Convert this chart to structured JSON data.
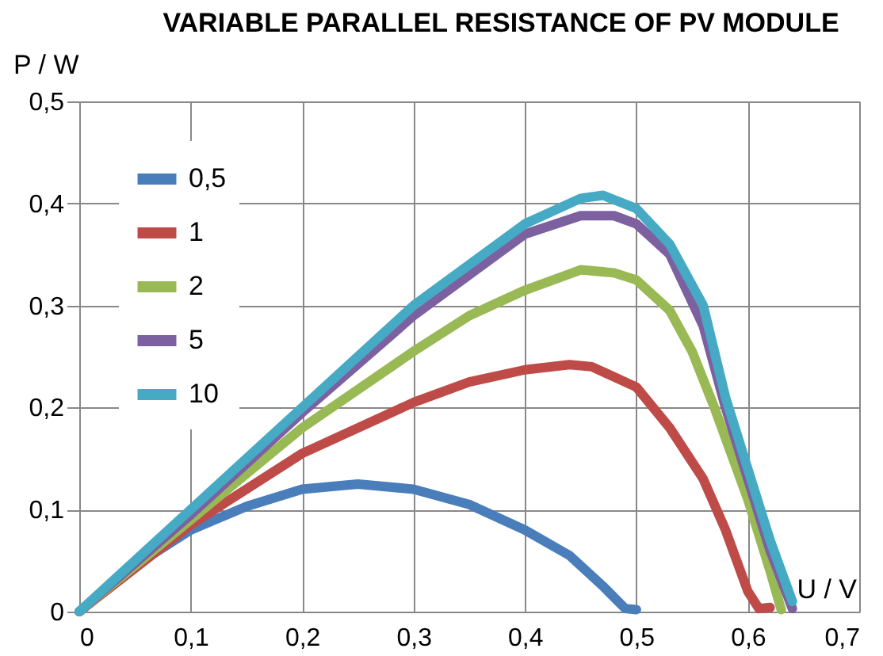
{
  "chart_data": {
    "type": "line",
    "title": "VARIABLE PARALLEL RESISTANCE OF PV MODULE",
    "xlabel": "U / V",
    "ylabel": "P / W",
    "xlim": [
      0,
      0.7
    ],
    "ylim": [
      0,
      0.5
    ],
    "xticks": [
      {
        "value": 0,
        "label": "0"
      },
      {
        "value": 0.1,
        "label": "0,1"
      },
      {
        "value": 0.2,
        "label": "0,2"
      },
      {
        "value": 0.3,
        "label": "0,3"
      },
      {
        "value": 0.4,
        "label": "0,4"
      },
      {
        "value": 0.5,
        "label": "0,5"
      },
      {
        "value": 0.6,
        "label": "0,6"
      },
      {
        "value": 0.7,
        "label": "0,7"
      }
    ],
    "yticks": [
      {
        "value": 0,
        "label": "0"
      },
      {
        "value": 0.1,
        "label": "0,1"
      },
      {
        "value": 0.2,
        "label": "0,2"
      },
      {
        "value": 0.3,
        "label": "0,3"
      },
      {
        "value": 0.4,
        "label": "0,4"
      },
      {
        "value": 0.5,
        "label": "0,5"
      }
    ],
    "grid": true,
    "legend": "top left",
    "marker": "none",
    "line_style": "solid",
    "series": [
      {
        "name": "0,5",
        "color": "#4a7ebb",
        "x": [
          0,
          0.05,
          0.1,
          0.15,
          0.2,
          0.25,
          0.3,
          0.35,
          0.4,
          0.44,
          0.47,
          0.49,
          0.5
        ],
        "values": [
          0,
          0.045,
          0.08,
          0.103,
          0.12,
          0.125,
          0.12,
          0.105,
          0.08,
          0.055,
          0.025,
          0.003,
          0.002
        ]
      },
      {
        "name": "1",
        "color": "#be4b48",
        "x": [
          0,
          0.1,
          0.2,
          0.3,
          0.35,
          0.4,
          0.44,
          0.46,
          0.5,
          0.53,
          0.56,
          0.58,
          0.6,
          0.61,
          0.62
        ],
        "values": [
          0,
          0.085,
          0.155,
          0.205,
          0.225,
          0.237,
          0.242,
          0.24,
          0.22,
          0.18,
          0.13,
          0.08,
          0.02,
          0.003,
          0.004
        ]
      },
      {
        "name": "2",
        "color": "#98b954",
        "x": [
          0,
          0.1,
          0.2,
          0.3,
          0.35,
          0.4,
          0.45,
          0.48,
          0.5,
          0.53,
          0.55,
          0.57,
          0.6,
          0.62,
          0.63
        ],
        "values": [
          0,
          0.09,
          0.18,
          0.255,
          0.29,
          0.315,
          0.335,
          0.332,
          0.325,
          0.295,
          0.255,
          0.2,
          0.11,
          0.04,
          0.002
        ]
      },
      {
        "name": "5",
        "color": "#7d60a0",
        "x": [
          0,
          0.1,
          0.2,
          0.3,
          0.35,
          0.4,
          0.45,
          0.48,
          0.5,
          0.53,
          0.56,
          0.58,
          0.6,
          0.62,
          0.64
        ],
        "values": [
          0,
          0.095,
          0.195,
          0.29,
          0.33,
          0.37,
          0.388,
          0.388,
          0.38,
          0.35,
          0.28,
          0.2,
          0.13,
          0.06,
          0.003
        ]
      },
      {
        "name": "10",
        "color": "#46aac5",
        "x": [
          0,
          0.1,
          0.2,
          0.3,
          0.35,
          0.4,
          0.45,
          0.47,
          0.5,
          0.53,
          0.56,
          0.58,
          0.6,
          0.62,
          0.64
        ],
        "values": [
          0,
          0.1,
          0.2,
          0.3,
          0.34,
          0.38,
          0.405,
          0.408,
          0.395,
          0.36,
          0.3,
          0.21,
          0.14,
          0.07,
          0.01
        ]
      }
    ]
  }
}
